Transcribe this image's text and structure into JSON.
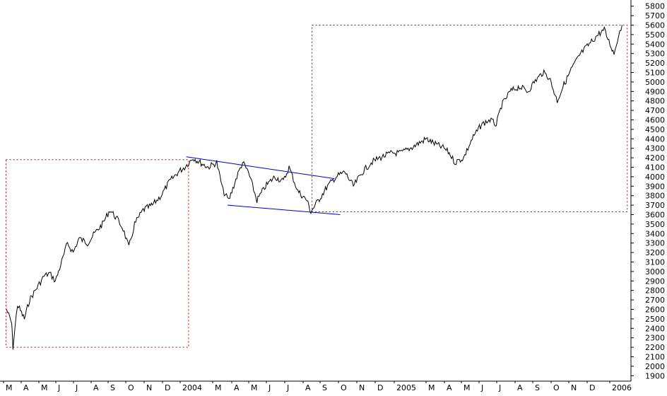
{
  "colors": {
    "background": "#ffffff",
    "price_line": "#000000",
    "trend_lines": "#0000cc",
    "boxes": "#cc0000",
    "axis": "#000000"
  },
  "chart_data": {
    "type": "line",
    "title": "",
    "xlabel": "",
    "ylabel": "",
    "ylim": [
      1850,
      5850
    ],
    "y_ticks": [
      1900,
      2000,
      2100,
      2200,
      2300,
      2400,
      2500,
      2600,
      2700,
      2800,
      2900,
      3000,
      3100,
      3200,
      3300,
      3400,
      3500,
      3600,
      3700,
      3800,
      3900,
      4000,
      4100,
      4200,
      4300,
      4400,
      4500,
      4600,
      4700,
      4800,
      4900,
      5000,
      5100,
      5200,
      5300,
      5400,
      5500,
      5600,
      5700,
      5800
    ],
    "x_ticks": [
      "M",
      "A",
      "M",
      "J",
      "J",
      "A",
      "S",
      "O",
      "N",
      "D",
      "2004",
      "M",
      "A",
      "M",
      "J",
      "J",
      "A",
      "S",
      "O",
      "N",
      "D",
      "2005",
      "M",
      "A",
      "M",
      "J",
      "J",
      "A",
      "S",
      "O",
      "N",
      "D",
      "2006"
    ],
    "grid": false,
    "series": [
      {
        "points": [
          [
            "2003-03-01",
            2600
          ],
          [
            "2003-03-10",
            2450
          ],
          [
            "2003-03-12",
            2200
          ],
          [
            "2003-03-20",
            2650
          ],
          [
            "2003-04-01",
            2500
          ],
          [
            "2003-04-10",
            2700
          ],
          [
            "2003-04-25",
            2850
          ],
          [
            "2003-05-05",
            2950
          ],
          [
            "2003-05-15",
            2980
          ],
          [
            "2003-05-25",
            2900
          ],
          [
            "2003-06-05",
            3100
          ],
          [
            "2003-06-15",
            3300
          ],
          [
            "2003-06-25",
            3200
          ],
          [
            "2003-07-05",
            3350
          ],
          [
            "2003-07-20",
            3300
          ],
          [
            "2003-08-01",
            3400
          ],
          [
            "2003-08-15",
            3500
          ],
          [
            "2003-08-28",
            3650
          ],
          [
            "2003-09-10",
            3550
          ],
          [
            "2003-09-20",
            3450
          ],
          [
            "2003-09-30",
            3250
          ],
          [
            "2003-10-10",
            3500
          ],
          [
            "2003-10-25",
            3650
          ],
          [
            "2003-11-10",
            3700
          ],
          [
            "2003-11-25",
            3800
          ],
          [
            "2003-12-10",
            3950
          ],
          [
            "2003-12-25",
            4050
          ],
          [
            "2004-01-05",
            4100
          ],
          [
            "2004-01-20",
            4200
          ],
          [
            "2004-02-01",
            4150
          ],
          [
            "2004-02-15",
            4100
          ],
          [
            "2004-03-01",
            4150
          ],
          [
            "2004-03-12",
            3850
          ],
          [
            "2004-03-22",
            3750
          ],
          [
            "2004-04-05",
            4000
          ],
          [
            "2004-04-15",
            4150
          ],
          [
            "2004-04-25",
            4050
          ],
          [
            "2004-05-10",
            3750
          ],
          [
            "2004-05-25",
            3900
          ],
          [
            "2004-06-10",
            4000
          ],
          [
            "2004-06-25",
            3950
          ],
          [
            "2004-07-05",
            4100
          ],
          [
            "2004-07-20",
            3850
          ],
          [
            "2004-08-05",
            3750
          ],
          [
            "2004-08-12",
            3630
          ],
          [
            "2004-08-25",
            3750
          ],
          [
            "2004-09-10",
            3900
          ],
          [
            "2004-09-25",
            4000
          ],
          [
            "2004-10-10",
            4050
          ],
          [
            "2004-10-25",
            3900
          ],
          [
            "2004-11-10",
            4050
          ],
          [
            "2004-11-25",
            4150
          ],
          [
            "2004-12-10",
            4200
          ],
          [
            "2004-12-31",
            4250
          ],
          [
            "2005-01-15",
            4250
          ],
          [
            "2005-02-01",
            4300
          ],
          [
            "2005-02-15",
            4350
          ],
          [
            "2005-03-01",
            4400
          ],
          [
            "2005-03-15",
            4350
          ],
          [
            "2005-04-01",
            4300
          ],
          [
            "2005-04-10",
            4250
          ],
          [
            "2005-04-20",
            4150
          ],
          [
            "2005-05-05",
            4200
          ],
          [
            "2005-05-20",
            4400
          ],
          [
            "2005-06-05",
            4550
          ],
          [
            "2005-06-20",
            4600
          ],
          [
            "2005-07-01",
            4550
          ],
          [
            "2005-07-10",
            4750
          ],
          [
            "2005-07-25",
            4900
          ],
          [
            "2005-08-10",
            4950
          ],
          [
            "2005-08-25",
            4900
          ],
          [
            "2005-09-05",
            5000
          ],
          [
            "2005-09-20",
            5100
          ],
          [
            "2005-10-01",
            5050
          ],
          [
            "2005-10-15",
            4800
          ],
          [
            "2005-10-25",
            4950
          ],
          [
            "2005-11-10",
            5150
          ],
          [
            "2005-11-25",
            5300
          ],
          [
            "2005-12-10",
            5400
          ],
          [
            "2005-12-25",
            5500
          ],
          [
            "2006-01-05",
            5550
          ],
          [
            "2006-01-15",
            5400
          ],
          [
            "2006-01-22",
            5300
          ],
          [
            "2006-01-30",
            5500
          ],
          [
            "2006-02-05",
            5600
          ]
        ]
      }
    ],
    "annotations": {
      "trend_lines": [
        {
          "from": [
            "2004-01-08",
            4210
          ],
          "to": [
            "2004-09-22",
            3980
          ]
        },
        {
          "from": [
            "2004-03-20",
            3700
          ],
          "to": [
            "2004-10-02",
            3600
          ]
        }
      ],
      "boxes": [
        {
          "x0": "2003-02-28",
          "x1": "2004-01-12",
          "y0": 2200,
          "y1": 4180
        },
        {
          "x0": "2004-08-14",
          "x1": "2006-02-14",
          "y0": 3630,
          "y1": 5600
        }
      ]
    }
  }
}
